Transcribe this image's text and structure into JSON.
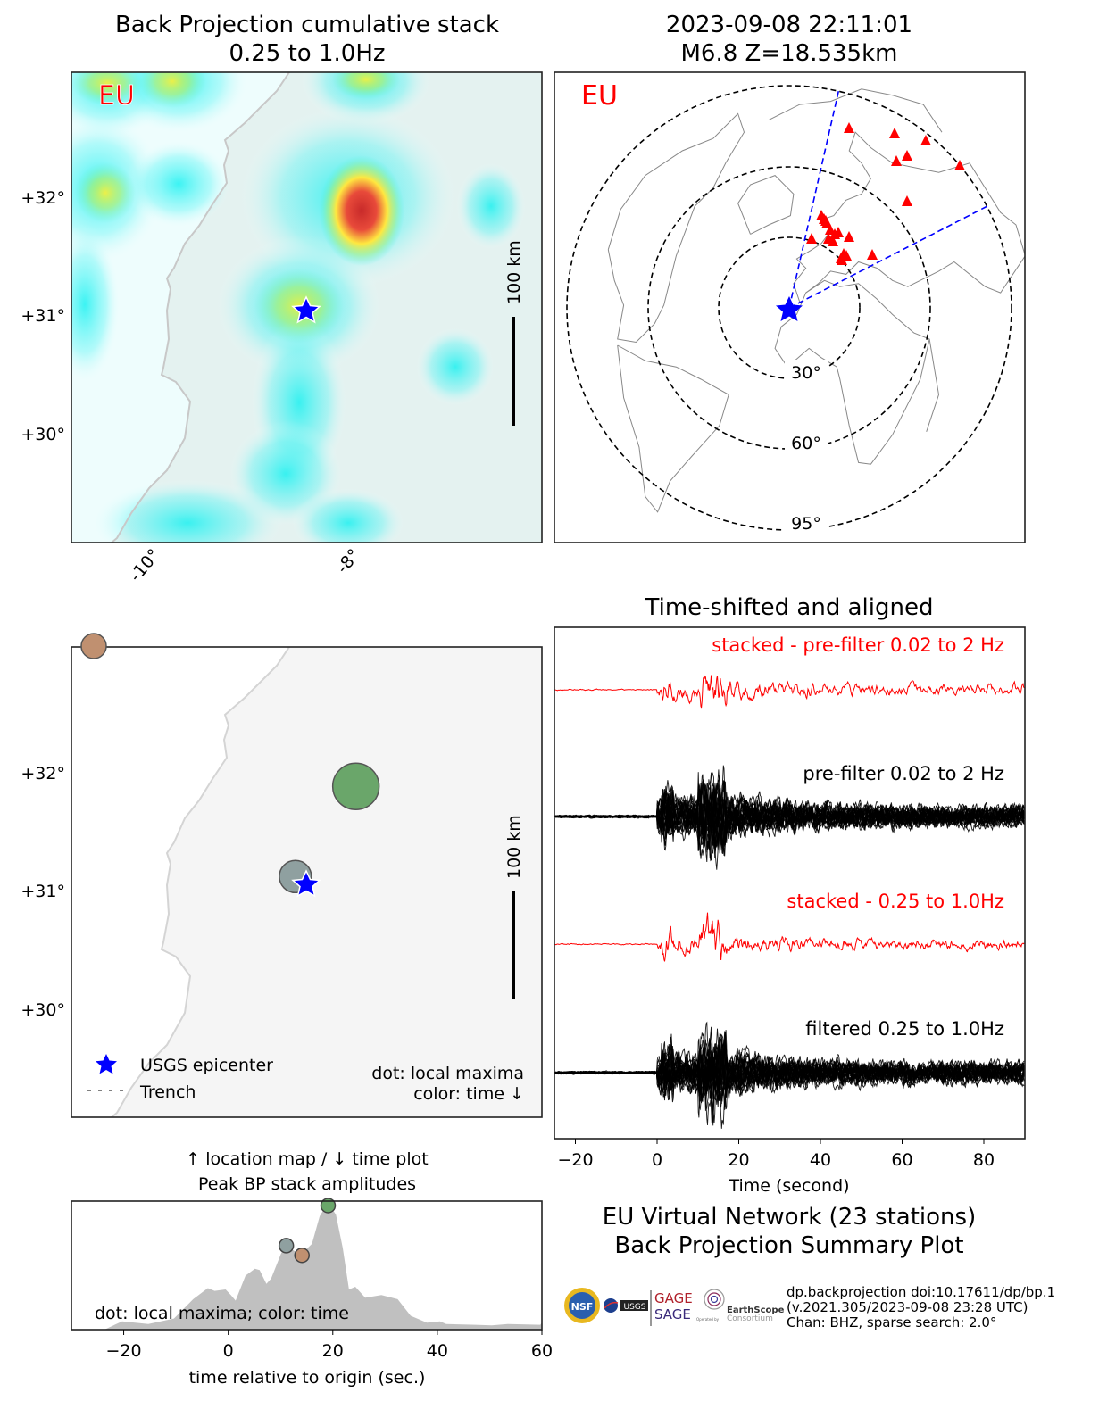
{
  "titles": {
    "bp_line1": "Back Projection cumulative stack",
    "bp_line2": "0.25 to 1.0Hz",
    "event_line1": "2023-09-08 22:11:01",
    "event_line2": "M6.8 Z=18.535km"
  },
  "colors": {
    "network_label": "#ff0000",
    "epicenter": "#0000ff",
    "stations": "#ff0000",
    "stack_trace": "#ff0000",
    "station_traces": "#000000",
    "azimuth_lines": "#0000ff"
  },
  "chart_data": [
    {
      "type": "heatmap",
      "title": "Back Projection cumulative stack 0.25 to 1.0Hz",
      "network_label": "EU",
      "yticks": [
        "+32°",
        "+31°",
        "+30°"
      ],
      "xticks": [
        "-10°",
        "-8°"
      ],
      "scale_bar": "100 km",
      "epicenter": {
        "lat": 31.06,
        "lon": -8.39
      },
      "max_stack": {
        "lat": 31.92,
        "lon": -7.88
      },
      "colormap": [
        "#ffffff",
        "#00ffff",
        "#ffff40",
        "#d02828"
      ]
    },
    {
      "type": "scatter",
      "title": "2023-09-08 22:11:01 M6.8 Z=18.535km",
      "network_label": "EU",
      "distance_rings": [
        "30°",
        "60°",
        "95°"
      ],
      "station_count": 23
    },
    {
      "type": "scatter",
      "yticks": [
        "+32°",
        "+31°",
        "+30°"
      ],
      "scale_bar": "100 km",
      "legend": {
        "epicenter": "USGS epicenter",
        "trench": "Trench"
      },
      "note_line1": "dot: local maxima",
      "note_line2": "color: time ↓",
      "caption_line1": "↑ location map / ↓ time plot",
      "caption_line2": "Peak BP stack amplitudes",
      "maxima": [
        {
          "lat": 33.06,
          "lon": -10.54,
          "time": 14.1,
          "color": "#c09070"
        },
        {
          "lat": 31.77,
          "lon": -7.94,
          "time": 19.1,
          "color": "#6aa66a"
        },
        {
          "lat": 30.98,
          "lon": -8.54,
          "time": 11.1,
          "color": "#8fa0a0"
        }
      ]
    },
    {
      "type": "line",
      "title": "Time-shifted and aligned",
      "xlabel": "Time (second)",
      "xlim": [
        -25,
        90
      ],
      "xticks": [
        "−20",
        "0",
        "20",
        "40",
        "60",
        "80"
      ],
      "xtick_values": [
        -20,
        0,
        20,
        40,
        60,
        80
      ],
      "traces": [
        {
          "label": "stacked - pre-filter 0.02 to 2 Hz",
          "color": "#ff0000"
        },
        {
          "label": "pre-filter 0.02 to 2 Hz",
          "color": "#000000"
        },
        {
          "label": "stacked - 0.25 to 1.0Hz",
          "color": "#ff0000"
        },
        {
          "label": "filtered 0.25 to 1.0Hz",
          "color": "#000000"
        }
      ]
    },
    {
      "type": "area",
      "xlabel": "time relative to origin (sec.)",
      "xlim": [
        -30,
        60
      ],
      "xticks": [
        "−20",
        "0",
        "20",
        "40",
        "60"
      ],
      "xtick_values": [
        -20,
        0,
        20,
        40,
        60
      ],
      "annotation": "dot: local maxima; color: time",
      "fill_color": "#c0c0c0",
      "x": [
        -30,
        -23.7,
        -20.3,
        -15.3,
        -10.4,
        -6.7,
        -3.9,
        -2.6,
        -0.5,
        0.5,
        1.4,
        3.3,
        5.1,
        6.0,
        7.3,
        8.2,
        10.1,
        11.0,
        12.6,
        14.1,
        16.0,
        17.5,
        19.1,
        20.6,
        21.9,
        23.1,
        24.3,
        26.2,
        29.3,
        32.4,
        34.9,
        38.0,
        40.5,
        41.7,
        47.3,
        50.4,
        53.5,
        59.7,
        60
      ],
      "y": [
        0,
        0.0,
        0.06,
        0.04,
        0.08,
        0.22,
        0.3,
        0.28,
        0.29,
        0.25,
        0.21,
        0.39,
        0.44,
        0.43,
        0.33,
        0.37,
        0.55,
        0.61,
        0.57,
        0.55,
        0.62,
        0.82,
        0.92,
        0.83,
        0.59,
        0.29,
        0.31,
        0.23,
        0.25,
        0.22,
        0.1,
        0.05,
        0.06,
        0.04,
        0.035,
        0.03,
        0.04,
        0.035,
        0.05
      ],
      "maxima": [
        {
          "time": 11.1,
          "amp": 0.62,
          "color": "#8fa0a0"
        },
        {
          "time": 14.1,
          "amp": 0.55,
          "color": "#c09070"
        },
        {
          "time": 19.1,
          "amp": 0.91,
          "color": "#6aa66a"
        }
      ]
    }
  ],
  "footer": {
    "network_line1": "EU Virtual Network (23 stations)",
    "network_line2": "Back Projection Summary Plot",
    "info_line1": "dp.backprojection doi:10.17611/dp/bp.1",
    "info_line2": "(v.2021.305/2023-09-08 23:28 UTC)",
    "info_line3": "Chan: BHZ, sparse search: 2.0°",
    "logos": {
      "nsf": "NSF",
      "nasa": "NASA",
      "usgs": "USGS",
      "gage": "GAGE",
      "sage": "SAGE",
      "earthscope": "EarthScope",
      "operated_by": "Operated by",
      "consortium": "Consortium"
    }
  }
}
